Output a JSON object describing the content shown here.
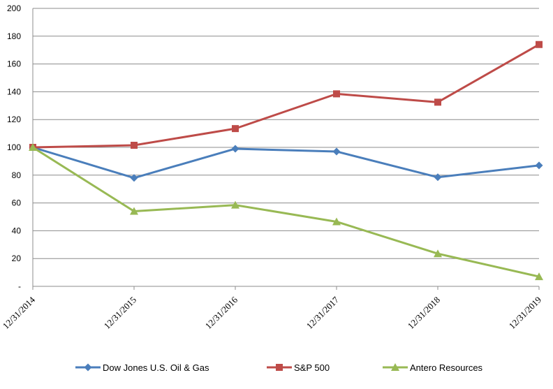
{
  "chart_data": {
    "type": "line",
    "title": "",
    "xlabel": "",
    "ylabel": "",
    "categories": [
      "12/31/2014",
      "12/31/2015",
      "12/31/2016",
      "12/31/2017",
      "12/31/2018",
      "12/31/2019"
    ],
    "ylim": [
      0,
      200
    ],
    "yticks": [
      0,
      20,
      40,
      60,
      80,
      100,
      120,
      140,
      160,
      180,
      200
    ],
    "ytick_labels": [
      "-",
      "20",
      "40",
      "60",
      "80",
      "100",
      "120",
      "140",
      "160",
      "180",
      "200"
    ],
    "grid": true,
    "legend_position": "bottom",
    "series": [
      {
        "name": "Dow Jones U.S. Oil & Gas",
        "values": [
          100,
          78,
          99,
          97,
          78.5,
          87
        ],
        "color": "#4a7ebb",
        "marker": "diamond"
      },
      {
        "name": "S&P 500",
        "values": [
          100,
          101.5,
          113.5,
          138.5,
          132.5,
          174
        ],
        "color": "#be4b48",
        "marker": "square"
      },
      {
        "name": "Antero Resources",
        "values": [
          100,
          54,
          58.5,
          46.5,
          23.5,
          7
        ],
        "color": "#98b954",
        "marker": "triangle"
      }
    ]
  }
}
